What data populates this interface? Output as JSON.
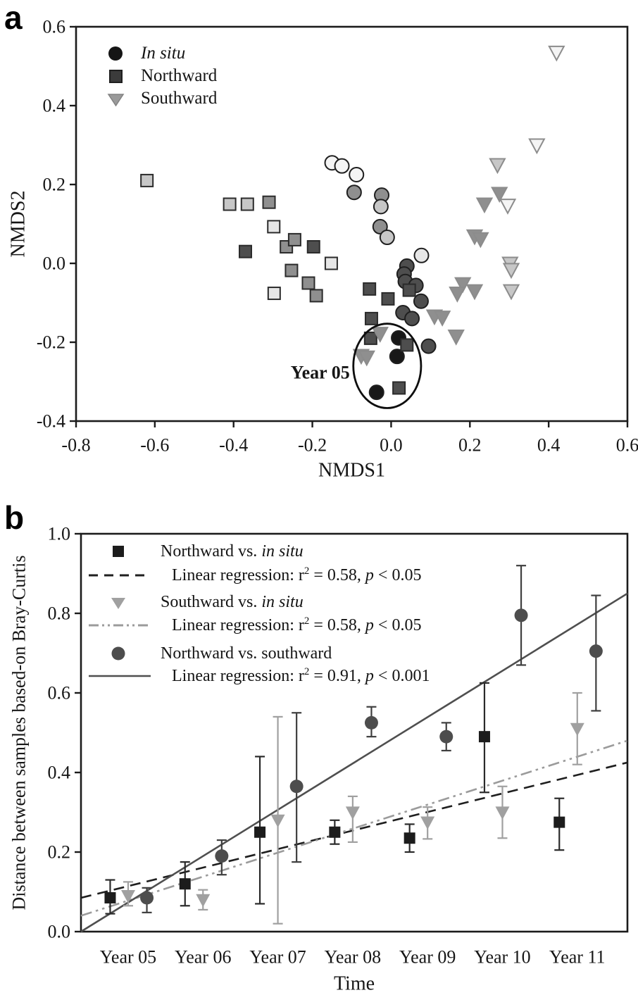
{
  "figure": {
    "panel_a": {
      "label": "a",
      "legend": [
        {
          "label": "In situ"
        },
        {
          "label": "Northward"
        },
        {
          "label": "Southward"
        }
      ],
      "annotation": "Year 05"
    },
    "panel_b": {
      "label": "b",
      "legend": [
        {
          "name_pre": "Northward vs. ",
          "name_it": "in situ",
          "reg_pre": "Linear regression: r",
          "reg_sup": "2",
          "reg_eq": " = 0.58, ",
          "reg_p": "p",
          "reg_tail": " < 0.05"
        },
        {
          "name_pre": "Southward vs. ",
          "name_it": "in situ",
          "reg_pre": "Linear regression: r",
          "reg_sup": "2",
          "reg_eq": " = 0.58, ",
          "reg_p": "p",
          "reg_tail": " < 0.05"
        },
        {
          "name_pre": "Northward vs. southward",
          "name_it": "",
          "reg_pre": "Linear regression: r",
          "reg_sup": "2",
          "reg_eq": " = 0.91, ",
          "reg_p": "p",
          "reg_tail": " < 0.001"
        }
      ]
    }
  },
  "palette": {
    "white": "#f4f4f4",
    "xlight": "#e6e6e6",
    "light": "#c7c7c7",
    "medium": "#8f8f8f",
    "dark": "#4e4e4e",
    "black": "#181818"
  },
  "chart_data": [
    {
      "type": "scatter",
      "title": "NMDS ordination of samples by transplant treatment",
      "xlabel": "NMDS1",
      "ylabel": "NMDS2",
      "xlim": [
        -0.8,
        0.6
      ],
      "ylim": [
        -0.4,
        0.6
      ],
      "xticks": [
        -0.8,
        -0.6,
        -0.4,
        -0.2,
        0.0,
        0.2,
        0.4,
        0.6
      ],
      "yticks": [
        0.6,
        0.4,
        0.2,
        0.0,
        -0.2,
        -0.4
      ],
      "grid": false,
      "legend_position": "top-left",
      "annotation": {
        "text": "Year 05",
        "x": -0.105,
        "y": -0.277
      },
      "ellipse": {
        "cx": -0.01,
        "cy": -0.26,
        "rx": 0.086,
        "ry": 0.107
      },
      "series": [
        {
          "name": "In situ",
          "marker": "circle",
          "points": [
            [
              -0.15,
              0.255,
              "white"
            ],
            [
              -0.125,
              0.247,
              "white"
            ],
            [
              -0.088,
              0.225,
              "white"
            ],
            [
              -0.094,
              0.18,
              "medium"
            ],
            [
              -0.024,
              0.173,
              "medium"
            ],
            [
              -0.026,
              0.144,
              "light"
            ],
            [
              -0.028,
              0.093,
              "medium"
            ],
            [
              -0.01,
              0.066,
              "light"
            ],
            [
              0.077,
              0.02,
              "xlight"
            ],
            [
              0.04,
              -0.007,
              "dark"
            ],
            [
              0.033,
              -0.027,
              "dark"
            ],
            [
              0.036,
              -0.046,
              "dark"
            ],
            [
              0.063,
              -0.056,
              "dark"
            ],
            [
              0.076,
              -0.096,
              "dark"
            ],
            [
              0.03,
              -0.125,
              "dark"
            ],
            [
              0.053,
              -0.14,
              "dark"
            ],
            [
              0.019,
              -0.189,
              "black"
            ],
            [
              0.015,
              -0.236,
              "black"
            ],
            [
              0.095,
              -0.21,
              "dark"
            ],
            [
              -0.037,
              -0.327,
              "black"
            ]
          ]
        },
        {
          "name": "Northward",
          "marker": "square",
          "points": [
            [
              -0.62,
              0.21,
              "light"
            ],
            [
              -0.41,
              0.15,
              "light"
            ],
            [
              -0.365,
              0.15,
              "light"
            ],
            [
              -0.31,
              0.155,
              "medium"
            ],
            [
              -0.298,
              0.093,
              "xlight"
            ],
            [
              -0.37,
              0.03,
              "dark"
            ],
            [
              -0.266,
              0.042,
              "medium"
            ],
            [
              -0.245,
              0.06,
              "medium"
            ],
            [
              -0.197,
              0.042,
              "dark"
            ],
            [
              -0.152,
              0.0,
              "xlight"
            ],
            [
              -0.253,
              -0.018,
              "medium"
            ],
            [
              -0.21,
              -0.05,
              "medium"
            ],
            [
              -0.297,
              -0.076,
              "xlight"
            ],
            [
              -0.19,
              -0.082,
              "medium"
            ],
            [
              -0.055,
              -0.065,
              "dark"
            ],
            [
              0.046,
              -0.068,
              "dark"
            ],
            [
              -0.008,
              -0.09,
              "dark"
            ],
            [
              -0.05,
              -0.14,
              "dark"
            ],
            [
              -0.052,
              -0.19,
              "dark"
            ],
            [
              0.04,
              -0.207,
              "dark"
            ],
            [
              0.02,
              -0.316,
              "dark"
            ]
          ]
        },
        {
          "name": "Southward",
          "marker": "triangle",
          "points": [
            [
              0.42,
              0.535,
              "white"
            ],
            [
              0.37,
              0.3,
              "white"
            ],
            [
              0.27,
              0.25,
              "light"
            ],
            [
              0.275,
              0.177,
              "medium"
            ],
            [
              0.237,
              0.15,
              "medium"
            ],
            [
              0.296,
              0.147,
              "white"
            ],
            [
              0.212,
              0.069,
              "medium"
            ],
            [
              0.227,
              0.062,
              "medium"
            ],
            [
              0.302,
              0.0,
              "light"
            ],
            [
              0.305,
              -0.016,
              "light"
            ],
            [
              0.182,
              -0.052,
              "medium"
            ],
            [
              0.168,
              -0.076,
              "medium"
            ],
            [
              0.212,
              -0.07,
              "medium"
            ],
            [
              0.305,
              -0.07,
              "light"
            ],
            [
              0.11,
              -0.134,
              "medium"
            ],
            [
              0.13,
              -0.137,
              "medium"
            ],
            [
              0.165,
              -0.185,
              "medium"
            ],
            [
              -0.028,
              -0.178,
              "medium"
            ],
            [
              -0.076,
              -0.234,
              "medium"
            ],
            [
              -0.062,
              -0.238,
              "medium"
            ]
          ]
        }
      ]
    },
    {
      "type": "scatter-errorbar-regression",
      "title": "Community distance over time",
      "xlabel": "Time",
      "ylabel": "Distance between samples based-on Bray-Curtis",
      "categories": [
        "Year 05",
        "Year 06",
        "Year 07",
        "Year 08",
        "Year 09",
        "Year 10",
        "Year 11"
      ],
      "ylim": [
        0.0,
        1.0
      ],
      "yticks": [
        0.0,
        0.2,
        0.4,
        0.6,
        0.8,
        1.0
      ],
      "grid": false,
      "legend_position": "top-left",
      "series": [
        {
          "name": "Northward vs. in situ",
          "marker": "square",
          "color": "#1c1c1c",
          "err_color": "#2a2a2a",
          "x_offset": -0.24,
          "values": [
            0.085,
            0.12,
            0.25,
            0.25,
            0.235,
            0.49,
            0.275
          ],
          "err_low": [
            0.045,
            0.065,
            0.07,
            0.22,
            0.2,
            0.35,
            0.205
          ],
          "err_high": [
            0.13,
            0.175,
            0.44,
            0.28,
            0.27,
            0.625,
            0.335
          ],
          "regression": {
            "style": "dashed",
            "color": "#1f1f1f",
            "r2": 0.58,
            "p": "< 0.05",
            "y_left": 0.085,
            "y_right": 0.425
          }
        },
        {
          "name": "Southward vs. in situ",
          "marker": "triangle",
          "color": "#a0a0a0",
          "err_color": "#a0a0a0",
          "x_offset": 0,
          "values": [
            0.09,
            0.08,
            0.28,
            0.3,
            0.275,
            0.3,
            0.51
          ],
          "err_low": [
            0.065,
            0.055,
            0.02,
            0.225,
            0.233,
            0.235,
            0.42
          ],
          "err_high": [
            0.125,
            0.105,
            0.54,
            0.34,
            0.313,
            0.365,
            0.6
          ],
          "regression": {
            "style": "dash-dot-dot",
            "color": "#9b9b9b",
            "r2": 0.58,
            "p": "< 0.05",
            "y_left": 0.04,
            "y_right": 0.48
          }
        },
        {
          "name": "Northward vs. southward",
          "marker": "circle",
          "color": "#4d4d4d",
          "err_color": "#3f3f3f",
          "x_offset": 0.25,
          "values": [
            0.085,
            0.19,
            0.365,
            0.525,
            0.49,
            0.795,
            0.705
          ],
          "err_low": [
            0.048,
            0.143,
            0.175,
            0.49,
            0.455,
            0.67,
            0.555
          ],
          "err_high": [
            0.11,
            0.23,
            0.55,
            0.565,
            0.525,
            0.92,
            0.845
          ],
          "regression": {
            "style": "solid",
            "color": "#4f4f4f",
            "r2": 0.91,
            "p": "< 0.001",
            "y_left": 0.0,
            "y_right": 0.85
          }
        }
      ]
    }
  ]
}
